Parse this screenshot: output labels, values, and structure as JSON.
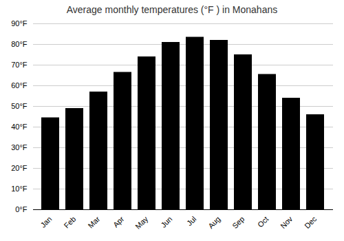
{
  "chart_data": {
    "type": "bar",
    "title": "Average monthly temperatures (°F ) in Monahans",
    "categories": [
      "Jan",
      "Feb",
      "Mar",
      "Apr",
      "May",
      "Jun",
      "Jul",
      "Aug",
      "Sep",
      "Oct",
      "Nov",
      "Dec"
    ],
    "values": [
      44.5,
      49,
      57,
      66.5,
      74,
      81,
      83.5,
      82,
      75,
      65.5,
      54,
      46
    ],
    "ylim": [
      0,
      90
    ],
    "yticks": [
      {
        "value": 0,
        "label": "0°F"
      },
      {
        "value": 10,
        "label": "10°F"
      },
      {
        "value": 20,
        "label": "20°F"
      },
      {
        "value": 30,
        "label": "30°F"
      },
      {
        "value": 40,
        "label": "40°F"
      },
      {
        "value": 50,
        "label": "50°F"
      },
      {
        "value": 60,
        "label": "60°F"
      },
      {
        "value": 70,
        "label": "70°F"
      },
      {
        "value": 80,
        "label": "80°F"
      },
      {
        "value": 90,
        "label": "90°F"
      }
    ],
    "grid": true
  }
}
